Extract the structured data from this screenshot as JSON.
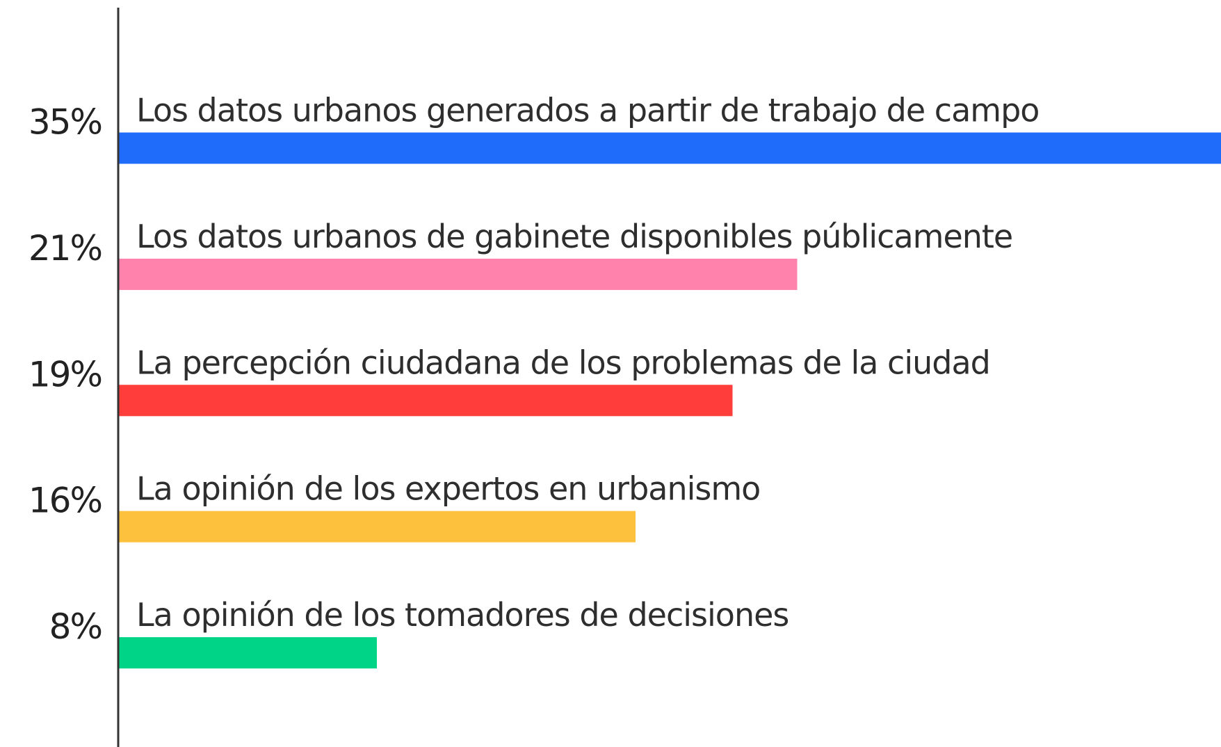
{
  "chart_data": {
    "type": "bar",
    "categories": [
      "Los datos urbanos generados a partir de trabajo de campo",
      "Los datos urbanos de gabinete disponibles públicamente",
      "La percepción ciudadana de los problemas de la ciudad",
      "La opinión de los expertos en urbanismo",
      "La opinión de los tomadores de decisiones"
    ],
    "values": [
      35,
      21,
      19,
      16,
      8
    ],
    "value_labels": [
      "35%",
      "21%",
      "19%",
      "16%",
      "8%"
    ],
    "colors": [
      "#1f6bfa",
      "#ff82ac",
      "#ff3d3a",
      "#fdc13d",
      "#00d487"
    ]
  }
}
